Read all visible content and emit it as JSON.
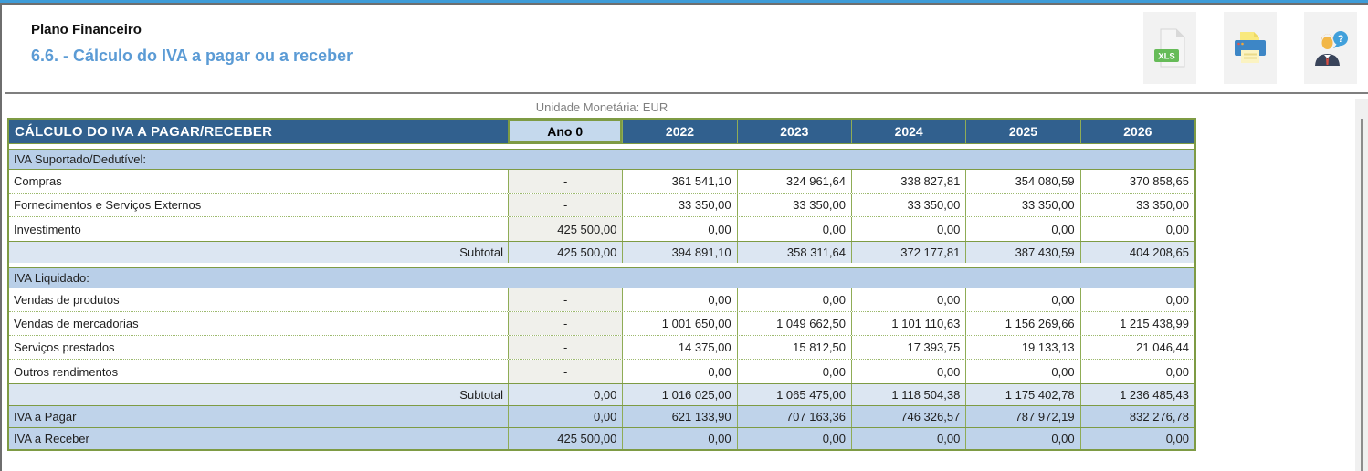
{
  "header": {
    "title": "Plano Financeiro",
    "subtitle": "6.6. - Cálculo do IVA a pagar ou a receber"
  },
  "toolbar": {
    "xls_badge": "XLS",
    "help_badge": "?",
    "buttons": [
      {
        "name": "export-xls",
        "icon": "xls-file-icon"
      },
      {
        "name": "print",
        "icon": "printer-icon"
      },
      {
        "name": "help",
        "icon": "help-person-icon"
      }
    ]
  },
  "table": {
    "unit_label": "Unidade Monetária: EUR",
    "title": "CÁLCULO DO IVA A PAGAR/RECEBER",
    "year_columns": [
      "Ano 0",
      "2022",
      "2023",
      "2024",
      "2025",
      "2026"
    ],
    "sections": [
      {
        "label": "IVA Suportado/Dedutível:",
        "rows": [
          {
            "label": "Compras",
            "values": [
              "-",
              "361 541,10",
              "324 961,64",
              "338 827,81",
              "354 080,59",
              "370 858,65"
            ]
          },
          {
            "label": "Fornecimentos e Serviços Externos",
            "values": [
              "-",
              "33 350,00",
              "33 350,00",
              "33 350,00",
              "33 350,00",
              "33 350,00"
            ]
          },
          {
            "label": "Investimento",
            "values": [
              "425 500,00",
              "0,00",
              "0,00",
              "0,00",
              "0,00",
              "0,00"
            ]
          }
        ],
        "subtotal": {
          "label": "Subtotal",
          "values": [
            "425 500,00",
            "394 891,10",
            "358 311,64",
            "372 177,81",
            "387 430,59",
            "404 208,65"
          ]
        }
      },
      {
        "label": "IVA Liquidado:",
        "rows": [
          {
            "label": "Vendas de produtos",
            "values": [
              "-",
              "0,00",
              "0,00",
              "0,00",
              "0,00",
              "0,00"
            ]
          },
          {
            "label": "Vendas de mercadorias",
            "values": [
              "-",
              "1 001 650,00",
              "1 049 662,50",
              "1 101 110,63",
              "1 156 269,66",
              "1 215 438,99"
            ]
          },
          {
            "label": "Serviços prestados",
            "values": [
              "-",
              "14 375,00",
              "15 812,50",
              "17 393,75",
              "19 133,13",
              "21 046,44"
            ]
          },
          {
            "label": "Outros rendimentos",
            "values": [
              "-",
              "0,00",
              "0,00",
              "0,00",
              "0,00",
              "0,00"
            ]
          }
        ],
        "subtotal": {
          "label": "Subtotal",
          "values": [
            "0,00",
            "1 016 025,00",
            "1 065 475,00",
            "1 118 504,38",
            "1 175 402,78",
            "1 236 485,43"
          ]
        }
      }
    ],
    "totals": [
      {
        "label": "IVA a Pagar",
        "values": [
          "0,00",
          "621 133,90",
          "707 163,36",
          "746 326,57",
          "787 972,19",
          "832 276,78"
        ]
      },
      {
        "label": "IVA a Receber",
        "values": [
          "425 500,00",
          "0,00",
          "0,00",
          "0,00",
          "0,00",
          "0,00"
        ]
      }
    ]
  },
  "colors": {
    "top_line_blue": "#3E9CD8",
    "accent_blue": "#5B9BD5",
    "table_header_bg": "#31608E",
    "ano0_header_bg": "#C5D9ED",
    "section_bg": "#B9CFE8",
    "subtotal_bg": "#DCE6F2",
    "total_bg": "#BFD3EA",
    "ano0_cell_bg": "#F0F0EB",
    "border_green": "#7E9B44",
    "xls_green": "#66BB58",
    "printer_blue": "#3D86C6"
  }
}
